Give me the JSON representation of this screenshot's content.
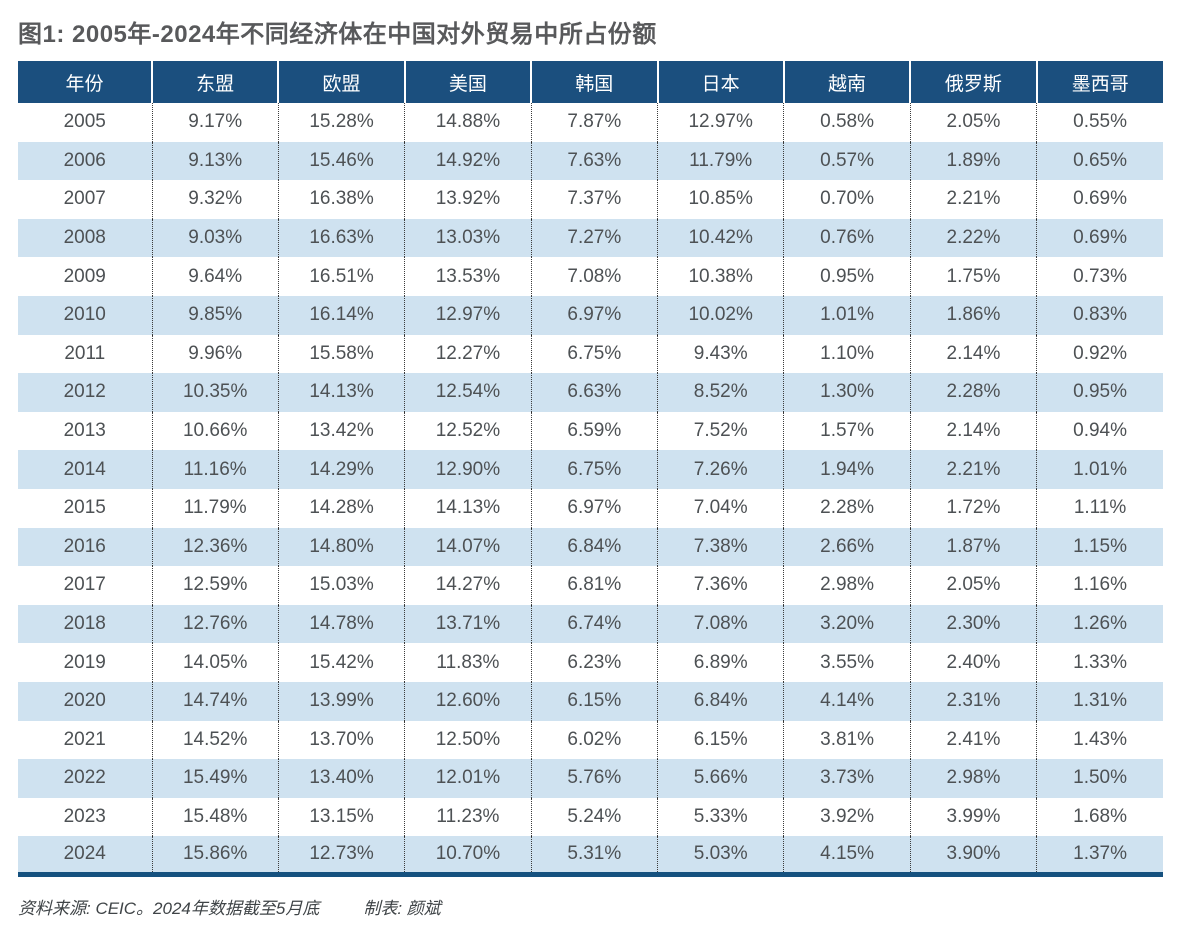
{
  "title": "图1: 2005年-2024年不同经济体在中国对外贸易中所占份额",
  "footer": {
    "source": "资料来源: CEIC。2024年数据截至5月底",
    "credit": "制表: 颜斌"
  },
  "colors": {
    "header_bg": "#1b4f7e",
    "row_alt_bg": "#cfe2f0",
    "bottom_rule": "#15517f",
    "title_text": "#58595b",
    "body_text": "#4d5154"
  },
  "chart_data": {
    "type": "table",
    "title": "图1: 2005年-2024年不同经济体在中国对外贸易中所占份额",
    "columns": [
      "年份",
      "东盟",
      "欧盟",
      "美国",
      "韩国",
      "日本",
      "越南",
      "俄罗斯",
      "墨西哥"
    ],
    "rows": [
      [
        "2005",
        "9.17%",
        "15.28%",
        "14.88%",
        "7.87%",
        "12.97%",
        "0.58%",
        "2.05%",
        "0.55%"
      ],
      [
        "2006",
        "9.13%",
        "15.46%",
        "14.92%",
        "7.63%",
        "11.79%",
        "0.57%",
        "1.89%",
        "0.65%"
      ],
      [
        "2007",
        "9.32%",
        "16.38%",
        "13.92%",
        "7.37%",
        "10.85%",
        "0.70%",
        "2.21%",
        "0.69%"
      ],
      [
        "2008",
        "9.03%",
        "16.63%",
        "13.03%",
        "7.27%",
        "10.42%",
        "0.76%",
        "2.22%",
        "0.69%"
      ],
      [
        "2009",
        "9.64%",
        "16.51%",
        "13.53%",
        "7.08%",
        "10.38%",
        "0.95%",
        "1.75%",
        "0.73%"
      ],
      [
        "2010",
        "9.85%",
        "16.14%",
        "12.97%",
        "6.97%",
        "10.02%",
        "1.01%",
        "1.86%",
        "0.83%"
      ],
      [
        "2011",
        "9.96%",
        "15.58%",
        "12.27%",
        "6.75%",
        "9.43%",
        "1.10%",
        "2.14%",
        "0.92%"
      ],
      [
        "2012",
        "10.35%",
        "14.13%",
        "12.54%",
        "6.63%",
        "8.52%",
        "1.30%",
        "2.28%",
        "0.95%"
      ],
      [
        "2013",
        "10.66%",
        "13.42%",
        "12.52%",
        "6.59%",
        "7.52%",
        "1.57%",
        "2.14%",
        "0.94%"
      ],
      [
        "2014",
        "11.16%",
        "14.29%",
        "12.90%",
        "6.75%",
        "7.26%",
        "1.94%",
        "2.21%",
        "1.01%"
      ],
      [
        "2015",
        "11.79%",
        "14.28%",
        "14.13%",
        "6.97%",
        "7.04%",
        "2.28%",
        "1.72%",
        "1.11%"
      ],
      [
        "2016",
        "12.36%",
        "14.80%",
        "14.07%",
        "6.84%",
        "7.38%",
        "2.66%",
        "1.87%",
        "1.15%"
      ],
      [
        "2017",
        "12.59%",
        "15.03%",
        "14.27%",
        "6.81%",
        "7.36%",
        "2.98%",
        "2.05%",
        "1.16%"
      ],
      [
        "2018",
        "12.76%",
        "14.78%",
        "13.71%",
        "6.74%",
        "7.08%",
        "3.20%",
        "2.30%",
        "1.26%"
      ],
      [
        "2019",
        "14.05%",
        "15.42%",
        "11.83%",
        "6.23%",
        "6.89%",
        "3.55%",
        "2.40%",
        "1.33%"
      ],
      [
        "2020",
        "14.74%",
        "13.99%",
        "12.60%",
        "6.15%",
        "6.84%",
        "4.14%",
        "2.31%",
        "1.31%"
      ],
      [
        "2021",
        "14.52%",
        "13.70%",
        "12.50%",
        "6.02%",
        "6.15%",
        "3.81%",
        "2.41%",
        "1.43%"
      ],
      [
        "2022",
        "15.49%",
        "13.40%",
        "12.01%",
        "5.76%",
        "5.66%",
        "3.73%",
        "2.98%",
        "1.50%"
      ],
      [
        "2023",
        "15.48%",
        "13.15%",
        "11.23%",
        "5.24%",
        "5.33%",
        "3.92%",
        "3.99%",
        "1.68%"
      ],
      [
        "2024",
        "15.86%",
        "12.73%",
        "10.70%",
        "5.31%",
        "5.03%",
        "4.15%",
        "3.90%",
        "1.37%"
      ]
    ],
    "notes": [
      "资料来源: CEIC。2024年数据截至5月底",
      "制表: 颜斌"
    ],
    "layout_hints": {
      "striped_rows": true,
      "stripe_start": "white",
      "column_separator": "dotted",
      "header_style": "solid dark blue, white text",
      "bottom_rule": "thick dark blue"
    }
  }
}
